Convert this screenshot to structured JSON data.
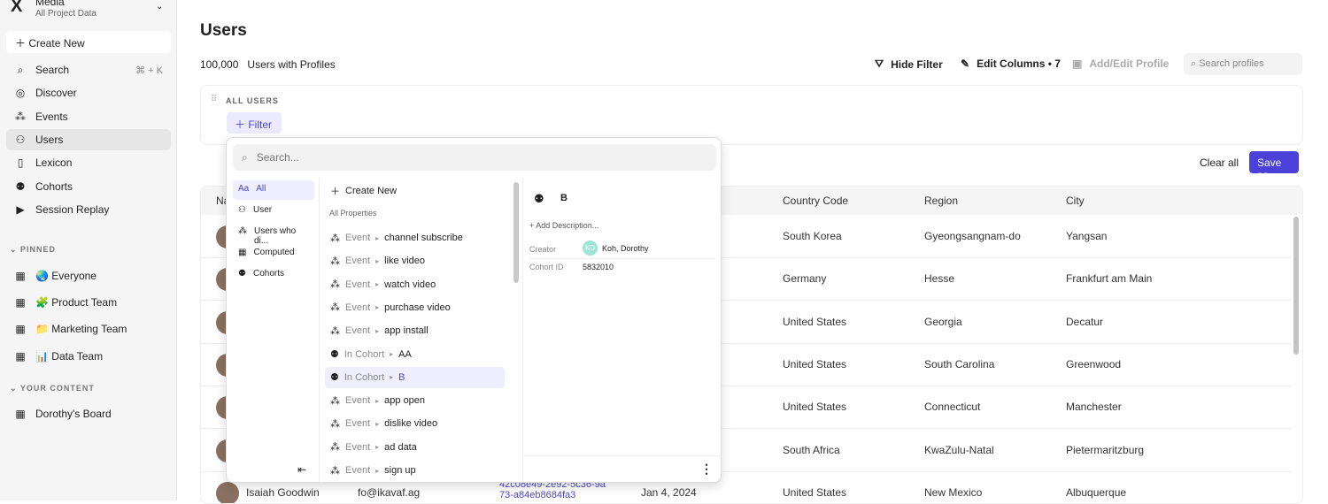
{
  "sidebar": {
    "logo": "X",
    "project": "Media",
    "project_sub": "All Project Data",
    "create_new": "Create New",
    "items": [
      {
        "label": "Search",
        "icon": "search-icon",
        "shortcut": "⌘ + K"
      },
      {
        "label": "Discover",
        "icon": "compass-icon"
      },
      {
        "label": "Events",
        "icon": "events-icon"
      },
      {
        "label": "Users",
        "icon": "users-icon",
        "active": true
      },
      {
        "label": "Lexicon",
        "icon": "book-icon"
      },
      {
        "label": "Cohorts",
        "icon": "cohorts-icon"
      },
      {
        "label": "Session Replay",
        "icon": "replay-icon"
      }
    ],
    "pinned_label": "PINNED",
    "pinned": [
      "🌏 Everyone",
      "🧩 Product Team",
      "📁 Marketing Team",
      "📊 Data Team"
    ],
    "your_content_label": "YOUR CONTENT",
    "content": [
      "Dorothy's Board"
    ]
  },
  "header": {
    "title": "Users",
    "count": "100,000",
    "count_label": "Users with Profiles",
    "hide_filter": "Hide Filter",
    "edit_columns": "Edit Columns • 7",
    "add_edit_profile": "Add/Edit Profile",
    "search_placeholder": "Search profiles"
  },
  "filter": {
    "all_users": "ALL USERS",
    "filter_btn": "Filter",
    "clear_all": "Clear all",
    "save_as": "Save as"
  },
  "table": {
    "headers": [
      "Na",
      "Country Code",
      "Region",
      "City"
    ],
    "rows": [
      {
        "country": "South Korea",
        "region": "Gyeongsangnam-do",
        "city": "Yangsan"
      },
      {
        "country": "Germany",
        "region": "Hesse",
        "city": "Frankfurt am Main"
      },
      {
        "country": "United States",
        "region": "Georgia",
        "city": "Decatur"
      },
      {
        "country": "United States",
        "region": "South Carolina",
        "city": "Greenwood"
      },
      {
        "country": "United States",
        "region": "Connecticut",
        "city": "Manchester"
      },
      {
        "country": "South Africa",
        "region": "KwaZulu-Natal",
        "city": "Pietermaritzburg"
      },
      {
        "name": "Isaiah Goodwin",
        "email": "fo@ikavaf.ag",
        "id": "42c08e49-2e92-5c36-9a73-a84eb8684fa3",
        "date": "Jan 4, 2024",
        "country": "United States",
        "region": "New Mexico",
        "city": "Albuquerque"
      }
    ]
  },
  "popover": {
    "search_placeholder": "Search...",
    "categories": [
      {
        "icon": "Aa",
        "label": "All"
      },
      {
        "icon": "user-icon",
        "label": "User"
      },
      {
        "icon": "events-icon",
        "label": "Users who di..."
      },
      {
        "icon": "computed-icon",
        "label": "Computed"
      },
      {
        "icon": "cohorts-icon",
        "label": "Cohorts"
      }
    ],
    "create_new": "Create New",
    "all_properties": "All Properties",
    "items": [
      {
        "pre": "Event",
        "name": "channel subscribe"
      },
      {
        "pre": "Event",
        "name": "like video"
      },
      {
        "pre": "Event",
        "name": "watch video"
      },
      {
        "pre": "Event",
        "name": "purchase video"
      },
      {
        "pre": "Event",
        "name": "app install"
      },
      {
        "pre": "In Cohort",
        "name": "AA"
      },
      {
        "pre": "In Cohort",
        "name": "B",
        "selected": true
      },
      {
        "pre": "Event",
        "name": "app open"
      },
      {
        "pre": "Event",
        "name": "dislike video"
      },
      {
        "pre": "Event",
        "name": "ad data"
      },
      {
        "pre": "Event",
        "name": "sign up"
      }
    ],
    "detail": {
      "title": "B",
      "add_description": "+ Add Description...",
      "creator_label": "Creator",
      "creator_initials": "KD",
      "creator": "Koh, Dorothy",
      "cohort_id_label": "Cohort ID",
      "cohort_id": "5832010"
    }
  },
  "colors": {
    "accent": "#4b41d9",
    "selected_bg": "#efeeff"
  }
}
